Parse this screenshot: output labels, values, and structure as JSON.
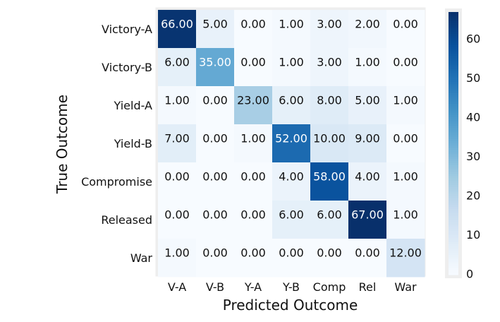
{
  "chart_data": {
    "type": "heatmap",
    "title": "",
    "xlabel": "Predicted Outcome",
    "ylabel": "True Outcome",
    "x_categories": [
      "V-A",
      "V-B",
      "Y-A",
      "Y-B",
      "Comp",
      "Rel",
      "War"
    ],
    "y_categories": [
      "Victory-A",
      "Victory-B",
      "Yield-A",
      "Yield-B",
      "Compromise",
      "Released",
      "War"
    ],
    "values": [
      [
        66,
        5,
        0,
        1,
        3,
        2,
        0
      ],
      [
        6,
        35,
        0,
        1,
        3,
        1,
        0
      ],
      [
        1,
        0,
        23,
        6,
        8,
        5,
        1
      ],
      [
        7,
        0,
        1,
        52,
        10,
        9,
        0
      ],
      [
        0,
        0,
        0,
        4,
        58,
        4,
        1
      ],
      [
        0,
        0,
        0,
        6,
        6,
        67,
        1
      ],
      [
        1,
        0,
        0,
        0,
        0,
        0,
        12
      ]
    ],
    "value_format": "0.00",
    "colormap": "Blues",
    "color_range": [
      0,
      67
    ],
    "colorbar_ticks": [
      0,
      10,
      20,
      30,
      40,
      50,
      60
    ],
    "grid": false
  }
}
